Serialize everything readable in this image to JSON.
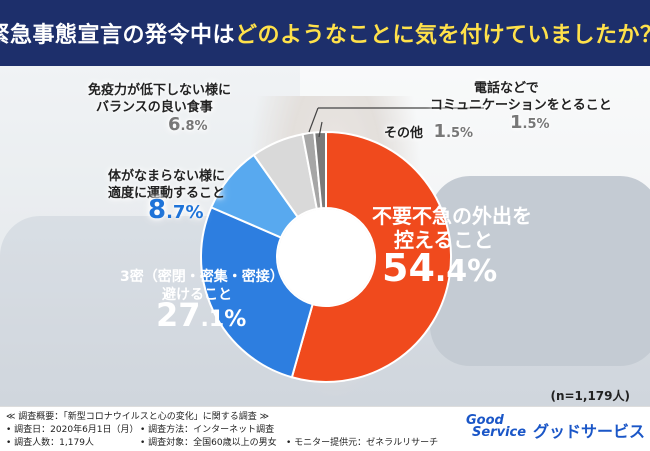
{
  "title": {
    "prefix": "緊急事態宣言の発令中は",
    "highlight": "どのようなことに気を付けていましたか？"
  },
  "colors": {
    "header_bg": "#1d2f6b",
    "highlight": "#ffe14a",
    "accent_red": "#f04a1d",
    "accent_blue": "#2d7ee0",
    "light_blue": "#58a9ef",
    "gray1": "#a6a6a6",
    "gray2": "#7a7a7a",
    "pct_blue": "#1e73d8"
  },
  "chart_data": {
    "type": "pie",
    "donut": true,
    "title": "緊急事態宣言の発令中はどのようなことに気を付けていましたか？",
    "slices": [
      {
        "label_lines": [
          "不要不急の外出を",
          "控えること"
        ],
        "value": 54.4,
        "pct_int": "54",
        "pct_dec": ".4%",
        "color": "#f04a1d"
      },
      {
        "label_lines": [
          "3密（密閉・密集・密接）を",
          "避けること"
        ],
        "value": 27.1,
        "pct_int": "27",
        "pct_dec": ".1%",
        "color": "#2d7ee0"
      },
      {
        "label_lines": [
          "体がなまらない様に",
          "適度に運動すること"
        ],
        "value": 8.7,
        "pct_int": "8",
        "pct_dec": ".7%",
        "color": "#58a9ef"
      },
      {
        "label_lines": [
          "免疫力が低下しない様に",
          "バランスの良い食事"
        ],
        "value": 6.8,
        "pct_int": "6",
        "pct_dec": ".8%",
        "color": "#d9d9d9"
      },
      {
        "label_lines": [
          "電話などで",
          "コミュニケーションをとること"
        ],
        "value": 1.5,
        "pct_int": "1",
        "pct_dec": ".5%",
        "color": "#a6a6a6"
      },
      {
        "label_lines": [
          "その他"
        ],
        "value": 1.5,
        "pct_int": "1",
        "pct_dec": ".5%",
        "color": "#7a7a7a"
      }
    ],
    "n_note": "(n=1,179人)"
  },
  "footer": {
    "overview": "≪ 調査概要：「新型コロナウイルスと心の変化」に関する調査 ≫",
    "date": "• 調査日：2020年6月1日（月）",
    "method": "• 調査方法：インターネット調査",
    "count": "• 調査人数：1,179人",
    "target": "• 調査対象：全国60歳以上の男女",
    "monitor": "• モニター提供元：ゼネラルリサーチ",
    "logo_line1": "Good",
    "logo_line2": "Service",
    "logo_jp": "グッドサービス"
  }
}
